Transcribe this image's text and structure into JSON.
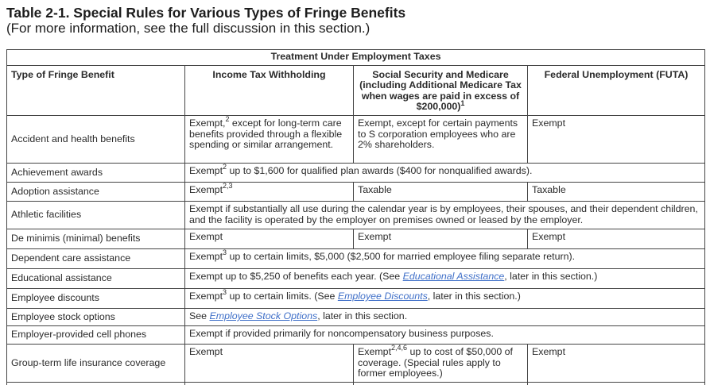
{
  "doc": {
    "title": "Table 2-1. Special Rules for Various Types of Fringe Benefits",
    "subtitle": "(For more information, see the full discussion in this section.)"
  },
  "colors": {
    "link_blue": "#3f6fc8",
    "text": "#2b2b2b",
    "border": "#454545"
  },
  "table": {
    "band": "Treatment Under Employment Taxes",
    "headers": {
      "benefit": "Type of Fringe Benefit",
      "income_tax": "Income Tax Withholding",
      "social_security": [
        {
          "t": "text",
          "v": "Social Security and Medicare (including Additional Medicare Tax when wages are paid in excess of $200,000)"
        },
        {
          "t": "sup",
          "v": "1"
        }
      ],
      "futa": "Federal Unemployment (FUTA)"
    },
    "rows": [
      {
        "benefit": "Accident and health benefits",
        "cells": [
          [
            {
              "t": "text",
              "v": "Exempt,"
            },
            {
              "t": "sup",
              "v": "2"
            },
            {
              "t": "text",
              "v": " except for long-term care benefits provided through a flexible spending or similar arrangement."
            }
          ],
          [
            {
              "t": "text",
              "v": "Exempt, except for certain payments to S corporation employees who are 2% shareholders."
            }
          ],
          [
            {
              "t": "text",
              "v": "Exempt"
            }
          ]
        ]
      },
      {
        "benefit": "Achievement awards",
        "cells": [
          [
            {
              "t": "text",
              "v": "Exempt"
            },
            {
              "t": "sup",
              "v": "2"
            },
            {
              "t": "text",
              "v": " up to $1,600 for qualified plan awards ($400 for nonqualified awards)."
            }
          ]
        ]
      },
      {
        "benefit": "Adoption assistance",
        "cells": [
          [
            {
              "t": "text",
              "v": "Exempt"
            },
            {
              "t": "sup",
              "v": "2,3"
            }
          ],
          [
            {
              "t": "text",
              "v": "Taxable"
            }
          ],
          [
            {
              "t": "text",
              "v": "Taxable"
            }
          ]
        ]
      },
      {
        "benefit": "Athletic facilities",
        "cells": [
          [
            {
              "t": "text",
              "v": "Exempt if substantially all use during the calendar year is by employees, their spouses, and their dependent children, and the facility is operated by the employer on premises owned or leased by the employer."
            }
          ]
        ]
      },
      {
        "benefit": "De minimis (minimal) benefits",
        "cells": [
          [
            {
              "t": "text",
              "v": "Exempt"
            }
          ],
          [
            {
              "t": "text",
              "v": "Exempt"
            }
          ],
          [
            {
              "t": "text",
              "v": "Exempt"
            }
          ]
        ]
      },
      {
        "benefit": "Dependent care assistance",
        "cells": [
          [
            {
              "t": "text",
              "v": "Exempt"
            },
            {
              "t": "sup",
              "v": "3"
            },
            {
              "t": "text",
              "v": " up to certain limits, $5,000 ($2,500 for married employee filing separate return)."
            }
          ]
        ]
      },
      {
        "benefit": "Educational assistance",
        "cells": [
          [
            {
              "t": "text",
              "v": "Exempt up to $5,250 of benefits each year. (See "
            },
            {
              "t": "link",
              "v": "Educational Assistance"
            },
            {
              "t": "text",
              "v": ", later in this section.)"
            }
          ]
        ]
      },
      {
        "benefit": "Employee discounts",
        "cells": [
          [
            {
              "t": "text",
              "v": "Exempt"
            },
            {
              "t": "sup",
              "v": "3"
            },
            {
              "t": "text",
              "v": " up to certain limits. (See "
            },
            {
              "t": "link",
              "v": "Employee Discounts"
            },
            {
              "t": "text",
              "v": ", later in this section.)"
            }
          ]
        ]
      },
      {
        "benefit": "Employee stock options",
        "cells": [
          [
            {
              "t": "text",
              "v": "See "
            },
            {
              "t": "link",
              "v": "Employee Stock Options"
            },
            {
              "t": "text",
              "v": ", later in this section."
            }
          ]
        ]
      },
      {
        "benefit": "Employer-provided cell phones",
        "cells": [
          [
            {
              "t": "text",
              "v": "Exempt if provided primarily for noncompensatory business purposes."
            }
          ]
        ]
      },
      {
        "benefit": "Group-term life insurance coverage",
        "cells": [
          [
            {
              "t": "text",
              "v": "Exempt"
            }
          ],
          [
            {
              "t": "text",
              "v": "Exempt"
            },
            {
              "t": "sup",
              "v": "2,4,6"
            },
            {
              "t": "text",
              "v": " up to cost of $50,000 of coverage. (Special rules apply to former employees.)"
            }
          ],
          [
            {
              "t": "text",
              "v": "Exempt"
            }
          ]
        ]
      }
    ]
  }
}
